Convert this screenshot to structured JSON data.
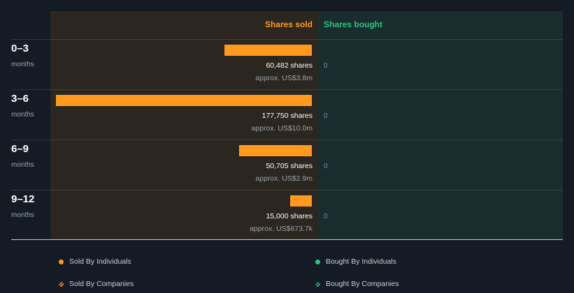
{
  "chart_data": {
    "type": "bar",
    "orientation": "horizontal",
    "columns": {
      "sold": "Shares sold",
      "bought": "Shares bought"
    },
    "categories": [
      {
        "period": "0–3",
        "unit": "months"
      },
      {
        "period": "3–6",
        "unit": "months"
      },
      {
        "period": "6–9",
        "unit": "months"
      },
      {
        "period": "9–12",
        "unit": "months"
      }
    ],
    "series": [
      {
        "name": "Shares sold",
        "values": [
          60482,
          177750,
          50705,
          15000
        ],
        "labels": [
          "60,482 shares",
          "177,750 shares",
          "50,705 shares",
          "15,000 shares"
        ],
        "approx": [
          "approx. US$3.8m",
          "approx. US$10.0m",
          "approx. US$2.9m",
          "approx. US$673.7k"
        ],
        "color": "#ff9a1f"
      },
      {
        "name": "Shares bought",
        "values": [
          0,
          0,
          0,
          0
        ],
        "labels": [
          "0",
          "0",
          "0",
          "0"
        ],
        "color": "#2ec27e"
      }
    ],
    "legend": [
      {
        "label": "Sold By Individuals",
        "style": "solid",
        "color": "#ff9a1f"
      },
      {
        "label": "Bought By Individuals",
        "style": "solid",
        "color": "#2ec27e"
      },
      {
        "label": "Sold By Companies",
        "style": "hatched",
        "color": "#ff9a1f"
      },
      {
        "label": "Bought By Companies",
        "style": "hatched",
        "color": "#2ec27e"
      }
    ]
  }
}
